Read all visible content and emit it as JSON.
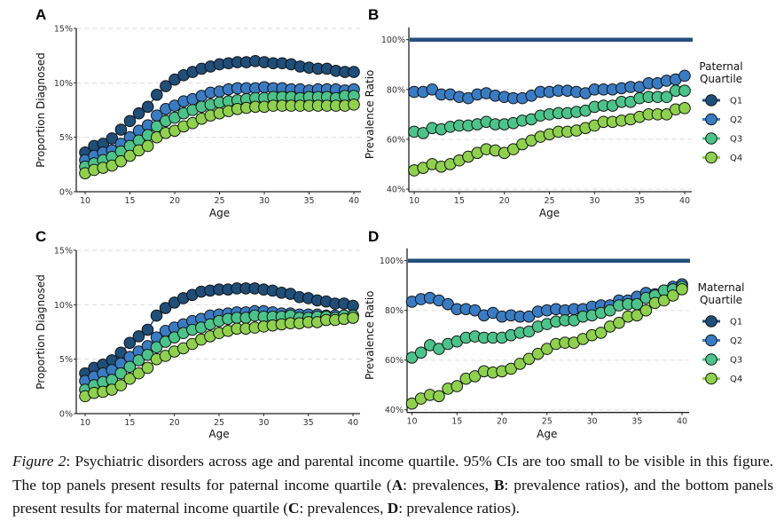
{
  "figure": {
    "caption": {
      "label": "Figure 2",
      "sep": ": ",
      "part1": "Psychiatric disorders across age and parental income quartile. 95% CIs are too small to be visible in this figure. The top panels present results for paternal income quartile (",
      "a": "A",
      "part2": ": prevalences, ",
      "b": "B",
      "part3": ": prevalence ratios), and the bottom panels present results for maternal income quartile (",
      "c": "C",
      "part4": ": prevalences, ",
      "d": "D",
      "part5": ": prevalence ratios)."
    }
  },
  "colors": {
    "Q1": "#1f4e79",
    "Q2": "#3a7cc3",
    "Q3": "#4cc38a",
    "Q4": "#8fd14f",
    "grid": "#dddddd",
    "reference_line": "#24507f"
  },
  "chart_data": [
    {
      "id": "A",
      "panel_label": "A",
      "type": "scatter",
      "xlabel": "Age",
      "ylabel": "Proportion Diagnosed",
      "x": [
        10,
        11,
        12,
        13,
        14,
        15,
        16,
        17,
        18,
        19,
        20,
        21,
        22,
        23,
        24,
        25,
        26,
        27,
        28,
        29,
        30,
        31,
        32,
        33,
        34,
        35,
        36,
        37,
        38,
        39,
        40
      ],
      "xlim": [
        10,
        40
      ],
      "xticks": [
        10,
        15,
        20,
        25,
        30,
        35,
        40
      ],
      "ylim": [
        0,
        15
      ],
      "yticks": [
        0,
        5,
        10,
        15
      ],
      "ytick_labels": [
        "0%",
        "5%",
        "10%",
        "15%"
      ],
      "grid": "horizontal-dashed",
      "series": [
        {
          "name": "Q1",
          "values": [
            3.6,
            4.2,
            4.4,
            4.9,
            5.7,
            6.5,
            7.2,
            7.8,
            8.9,
            9.7,
            10.3,
            10.7,
            11.0,
            11.3,
            11.5,
            11.7,
            11.8,
            11.9,
            11.9,
            12.0,
            11.9,
            11.8,
            11.8,
            11.7,
            11.5,
            11.4,
            11.3,
            11.3,
            11.1,
            11.0,
            11.0
          ]
        },
        {
          "name": "Q2",
          "values": [
            2.9,
            3.3,
            3.6,
            3.8,
            4.4,
            5.0,
            5.6,
            6.1,
            7.0,
            7.6,
            7.9,
            8.3,
            8.5,
            8.8,
            9.1,
            9.2,
            9.4,
            9.5,
            9.5,
            9.5,
            9.6,
            9.5,
            9.5,
            9.4,
            9.4,
            9.3,
            9.4,
            9.4,
            9.4,
            9.3,
            9.4
          ]
        },
        {
          "name": "Q3",
          "values": [
            2.3,
            2.6,
            2.9,
            3.2,
            3.7,
            4.2,
            4.7,
            5.2,
            6.0,
            6.5,
            6.8,
            7.2,
            7.5,
            7.8,
            8.0,
            8.2,
            8.3,
            8.4,
            8.5,
            8.6,
            8.6,
            8.7,
            8.7,
            8.7,
            8.6,
            8.7,
            8.7,
            8.7,
            8.6,
            8.8,
            8.8
          ]
        },
        {
          "name": "Q4",
          "values": [
            1.7,
            2.0,
            2.2,
            2.4,
            2.8,
            3.3,
            3.8,
            4.2,
            5.0,
            5.4,
            5.6,
            6.0,
            6.3,
            6.7,
            7.0,
            7.2,
            7.4,
            7.6,
            7.7,
            7.8,
            7.8,
            7.9,
            7.9,
            7.9,
            7.9,
            7.9,
            7.9,
            7.9,
            7.9,
            7.9,
            8.0
          ]
        }
      ]
    },
    {
      "id": "B",
      "panel_label": "B",
      "type": "scatter",
      "xlabel": "Age",
      "ylabel": "Prevalence Ratio",
      "x": [
        10,
        11,
        12,
        13,
        14,
        15,
        16,
        17,
        18,
        19,
        20,
        21,
        22,
        23,
        24,
        25,
        26,
        27,
        28,
        29,
        30,
        31,
        32,
        33,
        34,
        35,
        36,
        37,
        38,
        39,
        40
      ],
      "xlim": [
        10,
        40
      ],
      "xticks": [
        10,
        15,
        20,
        25,
        30,
        35,
        40
      ],
      "ylim": [
        40,
        100
      ],
      "yticks": [
        40,
        60,
        80,
        100
      ],
      "ytick_labels": [
        "40%",
        "60%",
        "80%",
        "100%"
      ],
      "grid": "horizontal-dashed",
      "reference": {
        "name": "Q1",
        "value": 100
      },
      "legend": {
        "title_line1": "Paternal",
        "title_line2": "Quartile",
        "entries": [
          "Q1",
          "Q2",
          "Q3",
          "Q4"
        ],
        "position": "right"
      },
      "series": [
        {
          "name": "Q2",
          "values": [
            79,
            79,
            80,
            78,
            78,
            77,
            76.5,
            78,
            78.5,
            77.5,
            77,
            76.5,
            76.5,
            77.5,
            79,
            79,
            79.5,
            79.5,
            79,
            78.5,
            80,
            80,
            80,
            80.5,
            81,
            81,
            82.5,
            82.5,
            83.5,
            84,
            85.5
          ]
        },
        {
          "name": "Q3",
          "values": [
            63,
            62.5,
            64.5,
            64,
            65,
            65.5,
            65.5,
            66,
            67,
            66,
            66,
            66.5,
            67.5,
            68,
            69.5,
            70,
            70.5,
            70.5,
            71,
            71.5,
            73,
            73.5,
            73.5,
            75,
            75,
            76.5,
            77,
            77,
            77,
            79.5,
            79.5
          ]
        },
        {
          "name": "Q4",
          "values": [
            47.5,
            48.5,
            50,
            49,
            50,
            51.5,
            53,
            54.5,
            56,
            55.5,
            54.5,
            56,
            58,
            59.5,
            61,
            62,
            63,
            63,
            63.5,
            64.5,
            65.5,
            67,
            67,
            67.5,
            68,
            69,
            70,
            70,
            70,
            72,
            72.5
          ]
        }
      ]
    },
    {
      "id": "C",
      "panel_label": "C",
      "type": "scatter",
      "xlabel": "Age",
      "ylabel": "Proportion Diagnosed",
      "x": [
        10,
        11,
        12,
        13,
        14,
        15,
        16,
        17,
        18,
        19,
        20,
        21,
        22,
        23,
        24,
        25,
        26,
        27,
        28,
        29,
        30,
        31,
        32,
        33,
        34,
        35,
        36,
        37,
        38,
        39,
        40
      ],
      "xlim": [
        10,
        40
      ],
      "xticks": [
        10,
        15,
        20,
        25,
        30,
        35,
        40
      ],
      "ylim": [
        0,
        15
      ],
      "yticks": [
        0,
        5,
        10,
        15
      ],
      "ytick_labels": [
        "0%",
        "5%",
        "10%",
        "15%"
      ],
      "grid": "horizontal-dashed",
      "series": [
        {
          "name": "Q1",
          "values": [
            3.7,
            4.2,
            4.5,
            4.9,
            5.6,
            6.5,
            7.1,
            7.7,
            9.0,
            9.7,
            10.2,
            10.6,
            10.9,
            11.2,
            11.3,
            11.4,
            11.4,
            11.5,
            11.5,
            11.5,
            11.4,
            11.3,
            11.1,
            11.0,
            10.7,
            10.6,
            10.4,
            10.3,
            10.1,
            10.1,
            9.9
          ]
        },
        {
          "name": "Q2",
          "values": [
            3.0,
            3.4,
            3.7,
            4.0,
            4.6,
            5.2,
            5.7,
            6.2,
            7.0,
            7.6,
            7.9,
            8.2,
            8.5,
            8.7,
            9.0,
            9.1,
            9.2,
            9.3,
            9.3,
            9.4,
            9.4,
            9.3,
            9.2,
            9.2,
            9.1,
            9.1,
            9.1,
            9.0,
            9.0,
            9.0,
            9.0
          ]
        },
        {
          "name": "Q3",
          "values": [
            2.2,
            2.6,
            2.9,
            3.1,
            3.7,
            4.3,
            4.9,
            5.4,
            6.1,
            6.6,
            7.0,
            7.4,
            7.7,
            7.9,
            8.2,
            8.5,
            8.7,
            8.8,
            8.8,
            9.0,
            8.9,
            8.9,
            8.9,
            9.0,
            8.8,
            8.8,
            8.9,
            8.9,
            8.8,
            9.0,
            9.0
          ]
        },
        {
          "name": "Q4",
          "values": [
            1.6,
            1.9,
            2.0,
            2.2,
            2.6,
            3.2,
            3.7,
            4.2,
            5.0,
            5.3,
            5.7,
            6.0,
            6.4,
            6.8,
            7.1,
            7.4,
            7.6,
            7.8,
            7.8,
            7.9,
            8.0,
            8.1,
            8.2,
            8.3,
            8.3,
            8.4,
            8.4,
            8.6,
            8.6,
            8.7,
            8.8
          ]
        }
      ]
    },
    {
      "id": "D",
      "panel_label": "D",
      "type": "scatter",
      "xlabel": "Age",
      "ylabel": "Prevalence Ratio",
      "x": [
        10,
        11,
        12,
        13,
        14,
        15,
        16,
        17,
        18,
        19,
        20,
        21,
        22,
        23,
        24,
        25,
        26,
        27,
        28,
        29,
        30,
        31,
        32,
        33,
        34,
        35,
        36,
        37,
        38,
        39,
        40
      ],
      "xlim": [
        10,
        40
      ],
      "xticks": [
        10,
        15,
        20,
        25,
        30,
        35,
        40
      ],
      "ylim": [
        40,
        100
      ],
      "yticks": [
        40,
        60,
        80,
        100
      ],
      "ytick_labels": [
        "40%",
        "60%",
        "80%",
        "100%"
      ],
      "grid": "horizontal-dashed",
      "reference": {
        "name": "Q1",
        "value": 100
      },
      "legend": {
        "title_line1": "Maternal",
        "title_line2": "Quartile",
        "entries": [
          "Q1",
          "Q2",
          "Q3",
          "Q4"
        ],
        "position": "right"
      },
      "series": [
        {
          "name": "Q2",
          "values": [
            83.5,
            84.5,
            85,
            84,
            82.5,
            80.5,
            80.5,
            80,
            78,
            79,
            77.5,
            78,
            77.5,
            77.5,
            79.5,
            80,
            80.5,
            80,
            80.5,
            80.5,
            81.5,
            82,
            82,
            84,
            84,
            85.5,
            87,
            86.5,
            88,
            89.5,
            90.5
          ]
        },
        {
          "name": "Q3",
          "values": [
            61,
            63,
            66,
            64.5,
            66.5,
            67.5,
            69,
            69.5,
            69,
            69,
            69,
            70,
            71,
            71.5,
            73.5,
            74.5,
            75.5,
            76,
            76,
            77.5,
            78,
            79,
            80,
            82,
            82.5,
            82.5,
            85,
            86,
            88,
            88.5,
            89.5
          ]
        },
        {
          "name": "Q4",
          "values": [
            42.5,
            44.5,
            46,
            45.5,
            48.5,
            49.5,
            52.5,
            53.5,
            55.5,
            55,
            55.5,
            56.5,
            58.5,
            60.5,
            62.5,
            64.5,
            66.5,
            67,
            67,
            68.5,
            70,
            71,
            73.5,
            75,
            77.5,
            78,
            80,
            83,
            84,
            86,
            88.5
          ]
        }
      ]
    }
  ]
}
